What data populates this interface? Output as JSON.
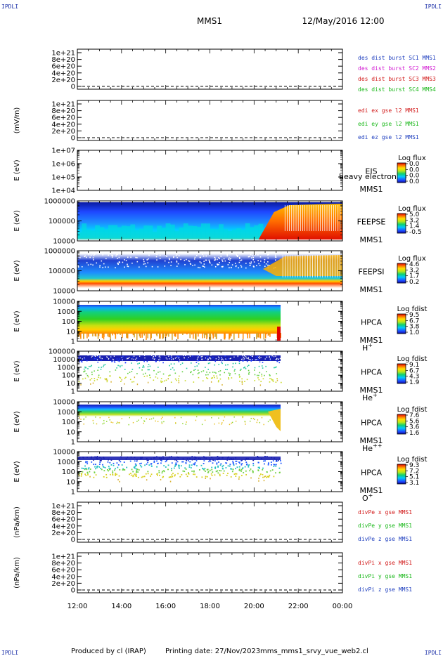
{
  "header": {
    "corner_label": "IPDLI",
    "spacecraft": "MMS1",
    "date": "12/May/2016 12:00"
  },
  "footer": {
    "produced_by": "Produced by cl (IRAP)",
    "printing_date": "Printing date: 27/Nov/2023",
    "file": "mms_mms1_srvy_vue_web2.cl"
  },
  "chart_data": {
    "type": "line",
    "x_axis": {
      "ticks": [
        "12:00",
        "14:00",
        "16:00",
        "18:00",
        "20:00",
        "22:00",
        "00:00"
      ],
      "range_hours": [
        12,
        24
      ]
    },
    "panels": [
      {
        "id": "des-dist",
        "kind": "line",
        "ylabel": "",
        "yticks": [
          "1e+21",
          "8e+20",
          "6e+20",
          "4e+20",
          "2e+20",
          "0"
        ],
        "dashed_zero": true,
        "legend": [
          {
            "text": "des dist burst SC1 MMS1",
            "color": "#1f3fbf"
          },
          {
            "text": "des dist burst SC2 MMS2",
            "color": "#d21ad2"
          },
          {
            "text": "des dist burst SC3 MMS3",
            "color": "#d21a1a"
          },
          {
            "text": "des dist burst SC4 MMS4",
            "color": "#1ab81a"
          }
        ]
      },
      {
        "id": "edi",
        "kind": "line",
        "ylabel": "(mV/m)",
        "yticks": [
          "1e+21",
          "8e+20",
          "6e+20",
          "4e+20",
          "2e+20",
          "0"
        ],
        "dashed_zero": true,
        "legend": [
          {
            "text": "edi ex gse l2 MMS1",
            "color": "#d21a1a"
          },
          {
            "text": "edi ey gse l2 MMS1",
            "color": "#1ab81a"
          },
          {
            "text": "edi ez gse l2 MMS1",
            "color": "#1f3fbf"
          }
        ]
      },
      {
        "id": "eis",
        "kind": "spectrogram",
        "ylabel": "E (eV)",
        "yticks": [
          "1e+07",
          "1e+06",
          "1e+05",
          "1e+04"
        ],
        "instrument": "EIS",
        "spacecraft": "MMS1",
        "note": "heavy electron to",
        "colorbar": {
          "title": "Log flux",
          "values": [
            "0.0",
            "0.0",
            "0.0",
            "0.0"
          ]
        },
        "fill": "none"
      },
      {
        "id": "feepse",
        "kind": "spectrogram",
        "ylabel": "E (eV)",
        "yticks": [
          "1000000",
          "100000",
          "10000"
        ],
        "instrument": "FEEPSE",
        "spacecraft": "MMS1",
        "colorbar": {
          "title": "Log flux",
          "values": [
            "5.0",
            "3.2",
            "1.4",
            "-0.5"
          ]
        },
        "fill": "feepse",
        "data_end_hour": 24
      },
      {
        "id": "feepsi",
        "kind": "spectrogram",
        "ylabel": "E (eV)",
        "yticks": [
          "1000000",
          "100000",
          "10000"
        ],
        "instrument": "FEEPSI",
        "spacecraft": "MMS1",
        "colorbar": {
          "title": "Log flux",
          "values": [
            "4.6",
            "3.2",
            "1.7",
            "0.2"
          ]
        },
        "fill": "feepsi",
        "data_end_hour": 24
      },
      {
        "id": "hpca-h",
        "kind": "spectrogram",
        "ylabel": "E (eV)",
        "yticks": [
          "10000",
          "1000",
          "100",
          "10",
          "1"
        ],
        "instrument": "HPCA",
        "spacecraft": "MMS1",
        "species": "H",
        "species_sup": "+",
        "colorbar": {
          "title": "Log fdist",
          "values": [
            "9.5",
            "6.7",
            "3.8",
            "1.0"
          ]
        },
        "fill": "hpca-h",
        "data_end_hour": 21.2
      },
      {
        "id": "hpca-he",
        "kind": "spectrogram",
        "ylabel": "E (eV)",
        "yticks": [
          "100000",
          "10000",
          "1000",
          "100",
          "10",
          "1"
        ],
        "instrument": "HPCA",
        "spacecraft": "MMS1",
        "species": "He",
        "species_sup": "+",
        "colorbar": {
          "title": "Log fdist",
          "values": [
            "9.1",
            "6.7",
            "4.3",
            "1.9"
          ]
        },
        "fill": "hpca-he",
        "data_end_hour": 21.2
      },
      {
        "id": "hpca-he2",
        "kind": "spectrogram",
        "ylabel": "E (eV)",
        "yticks": [
          "10000",
          "1000",
          "100",
          "10",
          "1"
        ],
        "instrument": "HPCA",
        "spacecraft": "MMS1",
        "species": "He",
        "species_sup": "++",
        "colorbar": {
          "title": "Log fdist",
          "values": [
            "7.6",
            "5.6",
            "3.6",
            "1.6"
          ]
        },
        "fill": "hpca-he2",
        "data_end_hour": 21.2
      },
      {
        "id": "hpca-o",
        "kind": "spectrogram",
        "ylabel": "E (eV)",
        "yticks": [
          "10000",
          "1000",
          "100",
          "10",
          "1"
        ],
        "instrument": "HPCA",
        "spacecraft": "MMS1",
        "species": "O",
        "species_sup": "+",
        "colorbar": {
          "title": "Log fdist",
          "values": [
            "9.3",
            "7.2",
            "5.1",
            "3.1"
          ]
        },
        "fill": "hpca-o",
        "data_end_hour": 21.2
      },
      {
        "id": "divpe",
        "kind": "line",
        "ylabel": "(nPa/km)",
        "yticks": [
          "1e+21",
          "8e+20",
          "6e+20",
          "4e+20",
          "2e+20",
          "0"
        ],
        "dashed_zero": true,
        "legend": [
          {
            "text": "divPe x gse MMS1",
            "color": "#d21a1a"
          },
          {
            "text": "divPe y gse MMS1",
            "color": "#1ab81a"
          },
          {
            "text": "divPe z gse MMS1",
            "color": "#1f3fbf"
          }
        ]
      },
      {
        "id": "divpi",
        "kind": "line",
        "ylabel": "(nPa/km)",
        "yticks": [
          "1e+21",
          "8e+20",
          "6e+20",
          "4e+20",
          "2e+20",
          "0"
        ],
        "dashed_zero": true,
        "legend": [
          {
            "text": "divPi x gse MMS1",
            "color": "#d21a1a"
          },
          {
            "text": "divPi y gse MMS1",
            "color": "#1ab81a"
          },
          {
            "text": "divPi z gse MMS1",
            "color": "#1f3fbf"
          }
        ]
      }
    ]
  }
}
